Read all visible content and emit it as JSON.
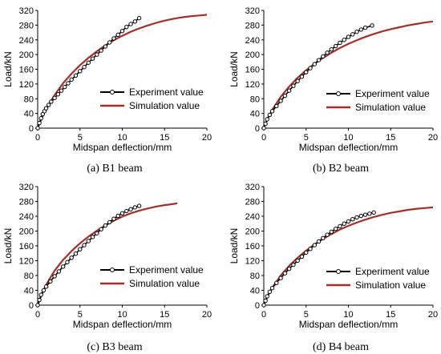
{
  "colors": {
    "experiment_line": "#000000",
    "experiment_marker_fill": "#ffffff",
    "simulation_line": "#a0302a"
  },
  "chart_data": [
    {
      "type": "line",
      "caption": "(a) B1 beam",
      "xlabel": "Midspan deflection/mm",
      "ylabel": "Load/kN",
      "xlim": [
        0,
        20
      ],
      "ylim": [
        0,
        320
      ],
      "xticks": [
        0,
        5,
        10,
        15,
        20
      ],
      "yticks": [
        0,
        40,
        80,
        120,
        160,
        200,
        240,
        280,
        320
      ],
      "legend": "center-right",
      "series": [
        {
          "name": "Experiment value",
          "style": "line-markers",
          "x": [
            0,
            0.2,
            0.4,
            0.6,
            0.8,
            1.0,
            1.3,
            1.6,
            2.0,
            2.4,
            2.8,
            3.2,
            3.6,
            4.0,
            4.5,
            5.0,
            5.5,
            6.0,
            6.5,
            7.0,
            7.5,
            8.0,
            8.5,
            9.0,
            9.5,
            10.0,
            10.5,
            11.0,
            11.5,
            12.0
          ],
          "y": [
            0,
            14,
            27,
            38,
            46,
            54,
            63,
            72,
            82,
            92,
            102,
            112,
            122,
            132,
            143,
            155,
            166,
            178,
            189,
            200,
            211,
            222,
            233,
            244,
            254,
            264,
            275,
            283,
            290,
            299
          ]
        },
        {
          "name": "Simulation value",
          "style": "line",
          "x": [
            0,
            0.5,
            1,
            2,
            3,
            4,
            5,
            6,
            7,
            8,
            9,
            10,
            11,
            12,
            13,
            14,
            15,
            16,
            17,
            18,
            19,
            20
          ],
          "y": [
            0,
            28,
            52,
            90,
            122,
            148,
            171,
            191,
            209,
            225,
            239,
            251,
            262,
            271,
            279,
            286,
            292,
            297,
            301,
            304,
            306,
            308
          ]
        }
      ]
    },
    {
      "type": "line",
      "caption": "(b) B2 beam",
      "xlabel": "Midspan deflection/mm",
      "ylabel": "Load/kN",
      "xlim": [
        0,
        20
      ],
      "ylim": [
        0,
        320
      ],
      "xticks": [
        0,
        5,
        10,
        15,
        20
      ],
      "yticks": [
        0,
        40,
        80,
        120,
        160,
        200,
        240,
        280,
        320
      ],
      "legend": "center-right",
      "series": [
        {
          "name": "Experiment value",
          "style": "line-markers",
          "x": [
            0,
            0.2,
            0.4,
            0.7,
            1.0,
            1.5,
            2.0,
            2.5,
            3.0,
            3.5,
            4.0,
            4.5,
            5.0,
            5.5,
            6.0,
            6.5,
            7.0,
            7.5,
            8.0,
            8.5,
            9.0,
            9.5,
            10.0,
            10.5,
            11.0,
            11.5,
            12.0,
            12.8
          ],
          "y": [
            0,
            12,
            24,
            36,
            46,
            60,
            74,
            88,
            102,
            115,
            128,
            140,
            152,
            163,
            174,
            185,
            195,
            205,
            214,
            223,
            232,
            240,
            248,
            255,
            262,
            268,
            273,
            279
          ]
        },
        {
          "name": "Simulation value",
          "style": "line",
          "x": [
            0,
            0.5,
            1,
            2,
            3,
            4,
            5,
            6,
            7,
            8,
            9,
            10,
            11,
            12,
            13,
            14,
            15,
            16,
            17,
            18,
            19,
            20
          ],
          "y": [
            0,
            28,
            50,
            85,
            113,
            137,
            157,
            175,
            191,
            205,
            218,
            229,
            239,
            248,
            256,
            263,
            269,
            274,
            279,
            283,
            287,
            290
          ]
        }
      ]
    },
    {
      "type": "line",
      "caption": "(c) B3 beam",
      "xlabel": "Midspan deflection/mm",
      "ylabel": "Load/kN",
      "xlim": [
        0,
        20
      ],
      "ylim": [
        0,
        320
      ],
      "xticks": [
        0,
        5,
        10,
        15,
        20
      ],
      "yticks": [
        0,
        40,
        80,
        120,
        160,
        200,
        240,
        280,
        320
      ],
      "legend": "center-right",
      "series": [
        {
          "name": "Experiment value",
          "style": "line-markers",
          "x": [
            0,
            0.2,
            0.4,
            0.7,
            1.0,
            1.5,
            2.0,
            2.5,
            3.0,
            3.5,
            4.0,
            4.5,
            5.0,
            5.5,
            6.0,
            6.5,
            7.0,
            7.5,
            8.0,
            8.5,
            9.0,
            9.5,
            10.0,
            10.5,
            11.0,
            11.5,
            12.0
          ],
          "y": [
            0,
            14,
            28,
            40,
            50,
            64,
            78,
            91,
            104,
            116,
            128,
            139,
            151,
            162,
            173,
            184,
            194,
            205,
            215,
            224,
            233,
            241,
            248,
            254,
            259,
            264,
            268
          ]
        },
        {
          "name": "Simulation value",
          "style": "line",
          "x": [
            0,
            0.5,
            1,
            2,
            3,
            4,
            5,
            6,
            7,
            8,
            9,
            10,
            11,
            12,
            13,
            14,
            15,
            16,
            16.5
          ],
          "y": [
            0,
            30,
            55,
            93,
            122,
            146,
            167,
            185,
            201,
            215,
            228,
            239,
            248,
            255,
            261,
            266,
            270,
            273,
            275
          ]
        }
      ]
    },
    {
      "type": "line",
      "caption": "(d) B4 beam",
      "xlabel": "Midspan deflection/mm",
      "ylabel": "Load/kN",
      "xlim": [
        0,
        20
      ],
      "ylim": [
        0,
        320
      ],
      "xticks": [
        0,
        5,
        10,
        15,
        20
      ],
      "yticks": [
        0,
        40,
        80,
        120,
        160,
        200,
        240,
        280,
        320
      ],
      "legend": "center-right",
      "series": [
        {
          "name": "Experiment value",
          "style": "line-markers",
          "x": [
            0,
            0.2,
            0.4,
            0.7,
            1.0,
            1.5,
            2.0,
            2.5,
            3.0,
            3.5,
            4.0,
            4.5,
            5.0,
            5.5,
            6.0,
            6.5,
            7.0,
            7.5,
            8.0,
            8.5,
            9.0,
            9.5,
            10.0,
            10.5,
            11.0,
            11.5,
            12.0,
            12.5,
            13.0
          ],
          "y": [
            0,
            12,
            24,
            36,
            46,
            60,
            73,
            86,
            98,
            109,
            120,
            131,
            142,
            152,
            162,
            172,
            181,
            190,
            198,
            206,
            213,
            220,
            226,
            232,
            237,
            241,
            244,
            247,
            250
          ]
        },
        {
          "name": "Simulation value",
          "style": "line",
          "x": [
            0,
            0.5,
            1,
            2,
            3,
            4,
            5,
            6,
            7,
            8,
            9,
            10,
            11,
            12,
            13,
            14,
            15,
            16,
            17,
            18,
            19,
            20
          ],
          "y": [
            0,
            26,
            47,
            80,
            106,
            128,
            147,
            164,
            179,
            192,
            204,
            214,
            223,
            231,
            238,
            244,
            249,
            253,
            257,
            260,
            262,
            264
          ]
        }
      ]
    }
  ]
}
